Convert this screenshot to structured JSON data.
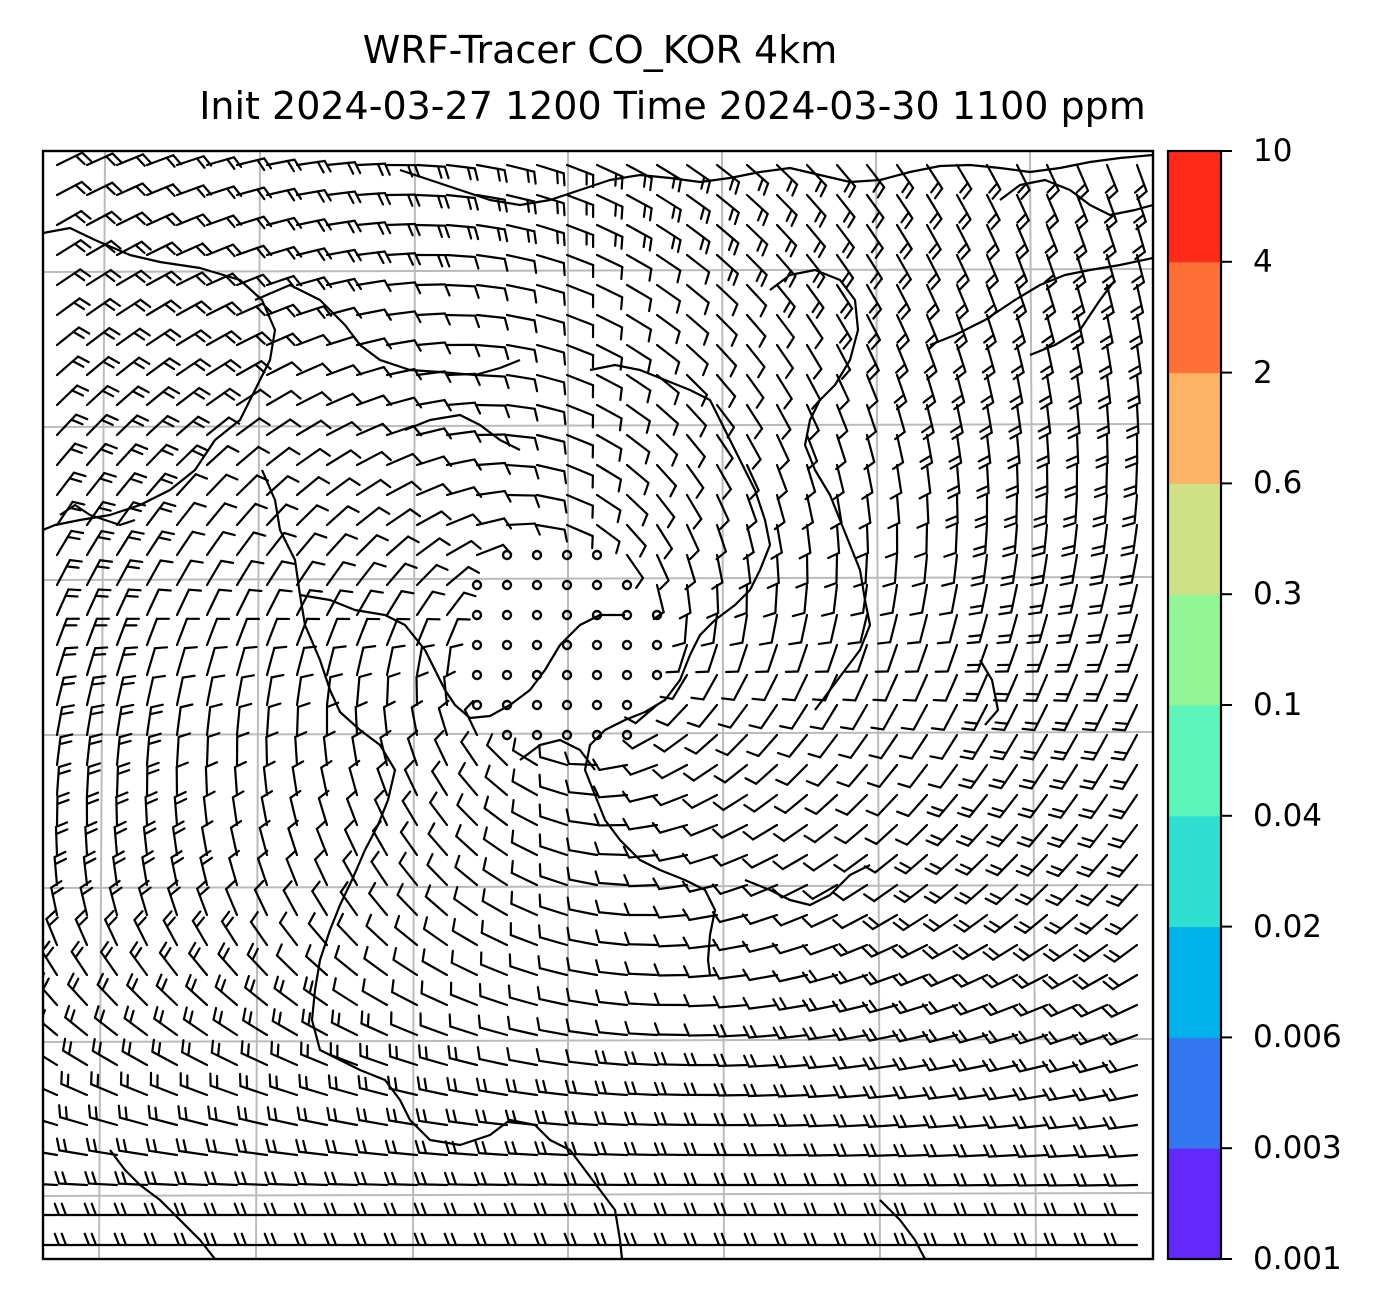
{
  "title": {
    "line1": "WRF-Tracer CO_KOR 4km",
    "line2": "Init 2024-03-27 1200 Time 2024-03-30 1100 ppm"
  },
  "colorbar": {
    "ticks": [
      "0.001",
      "0.003",
      "0.006",
      "0.02",
      "0.04",
      "0.1",
      "0.3",
      "0.6",
      "2",
      "4",
      "10"
    ],
    "colors": [
      "#6428fa",
      "#3377f2",
      "#00b1ea",
      "#2fdfd2",
      "#5cf5bb",
      "#92f596",
      "#cfe184",
      "#fcb365",
      "#ff7037",
      "#ff2a17"
    ]
  },
  "map": {
    "frame": "black",
    "gridline_color": "#bbbbbb",
    "barb_color": "#000000",
    "content": "wind barbs and coastlines over the Korean peninsula region"
  }
}
